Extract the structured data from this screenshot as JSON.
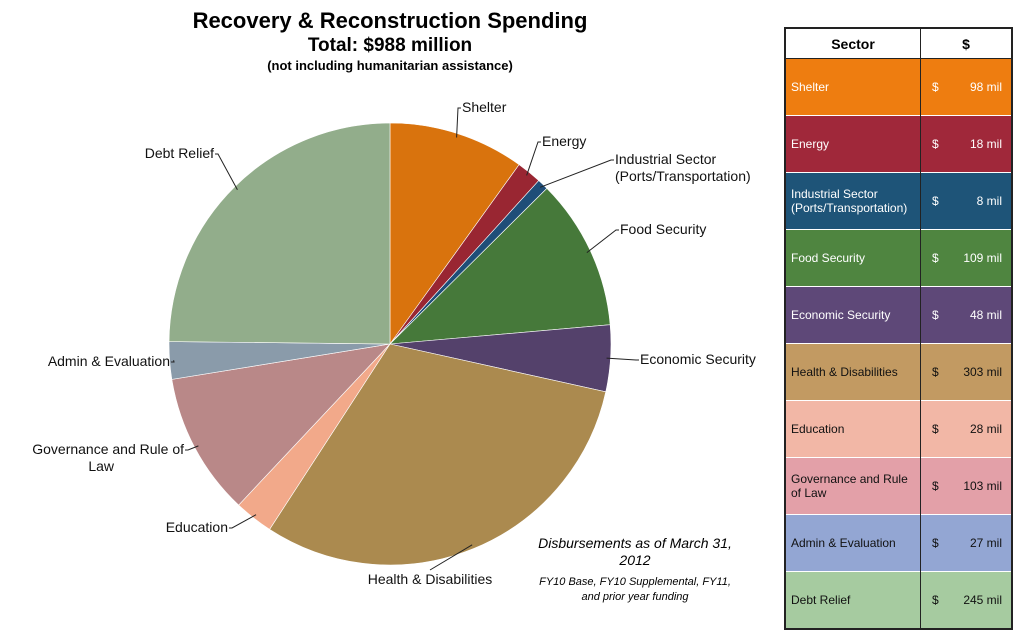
{
  "chart_data": {
    "type": "pie",
    "title": "Recovery & Reconstruction Spending",
    "subtitle": "Total: $988 million",
    "note": "(not including humanitarian assistance)",
    "unit": "mil",
    "slices": [
      {
        "label": "Shelter",
        "chart_label": "Shelter",
        "value": 98,
        "color": "#D9730D"
      },
      {
        "label": "Energy",
        "chart_label": "Energy",
        "value": 18,
        "color": "#992632"
      },
      {
        "label": "Industrial Sector (Ports/Transportation)",
        "chart_label": "Industrial Sector\n(Ports/Transportation)",
        "value": 8,
        "color": "#1F4E78"
      },
      {
        "label": "Food Security",
        "chart_label": "Food Security",
        "value": 109,
        "color": "#46793A"
      },
      {
        "label": "Economic Security",
        "chart_label": "Economic Security",
        "value": 48,
        "color": "#54416B"
      },
      {
        "label": "Health & Disabilities",
        "chart_label": "Health & Disabilities",
        "value": 303,
        "color": "#AB8A4F"
      },
      {
        "label": "Education",
        "chart_label": "Education",
        "value": 28,
        "color": "#F2A98A"
      },
      {
        "label": "Governance and Rule of Law",
        "chart_label": "Governance and Rule of\nLaw",
        "value": 103,
        "color": "#B98888"
      },
      {
        "label": "Admin & Evaluation",
        "chart_label": "Admin & Evaluation",
        "value": 27,
        "color": "#8A9BAA"
      },
      {
        "label": "Debt Relief",
        "chart_label": "Debt Relief",
        "value": 245,
        "color": "#92AD8B"
      }
    ]
  },
  "table": {
    "header_sector": "Sector",
    "header_amount": "$",
    "currency_symbol": "$",
    "rows": [
      {
        "sector": "Shelter",
        "amount": "98 mil",
        "bg": "#EE7D10"
      },
      {
        "sector": "Energy",
        "amount": "18 mil",
        "bg": "#A0283A"
      },
      {
        "sector": "Industrial Sector (Ports/Transportation)",
        "amount": "8 mil",
        "bg": "#1E5478"
      },
      {
        "sector": "Food Security",
        "amount": "109 mil",
        "bg": "#4F8540"
      },
      {
        "sector": "Economic Security",
        "amount": "48 mil",
        "bg": "#5E4878"
      },
      {
        "sector": "Health & Disabilities",
        "amount": "303 mil",
        "bg": "#C29A62",
        "dark_text": true
      },
      {
        "sector": "Education",
        "amount": "28 mil",
        "bg": "#F2B7A6",
        "dark_text": true
      },
      {
        "sector": "Governance and Rule of Law",
        "amount": "103 mil",
        "bg": "#E3A0A8",
        "dark_text": true
      },
      {
        "sector": "Admin & Evaluation",
        "amount": "27 mil",
        "bg": "#93A6D3",
        "dark_text": true
      },
      {
        "sector": "Debt Relief",
        "amount": "245 mil",
        "bg": "#A6CBA0",
        "dark_text": true
      }
    ]
  },
  "footnote": {
    "main": "Disbursements as of March 31, 2012",
    "sub": "FY10 Base, FY10 Supplemental, FY11, and prior year funding"
  }
}
